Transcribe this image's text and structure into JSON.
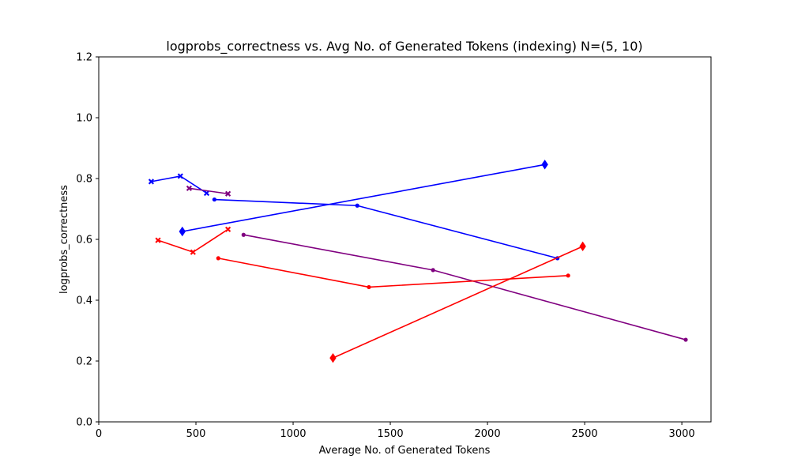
{
  "chart_data": {
    "type": "line",
    "title": "logprobs_correctness vs. Avg No. of Generated Tokens (indexing) N=(5, 10)",
    "xlabel": "Average No. of Generated Tokens",
    "ylabel": "logprobs_correctness",
    "xlim": [
      0,
      3150
    ],
    "ylim": [
      0.0,
      1.2
    ],
    "xticks": [
      0,
      500,
      1000,
      1500,
      2000,
      2500,
      3000
    ],
    "yticks": [
      0.0,
      0.2,
      0.4,
      0.6,
      0.8,
      1.0,
      1.2
    ],
    "grid": false,
    "series": [
      {
        "color": "#0000ff",
        "marker": "x",
        "points": [
          [
            270,
            0.79
          ],
          [
            420,
            0.808
          ],
          [
            555,
            0.752
          ]
        ]
      },
      {
        "color": "#800080",
        "marker": "x",
        "points": [
          [
            465,
            0.768
          ],
          [
            665,
            0.75
          ]
        ]
      },
      {
        "color": "#ff0000",
        "marker": "x",
        "points": [
          [
            305,
            0.597
          ],
          [
            485,
            0.558
          ],
          [
            665,
            0.633
          ]
        ]
      },
      {
        "color": "#0000ff",
        "marker": "dot",
        "points": [
          [
            595,
            0.731
          ],
          [
            1330,
            0.711
          ],
          [
            2360,
            0.538
          ]
        ]
      },
      {
        "color": "#800080",
        "marker": "dot",
        "points": [
          [
            745,
            0.615
          ],
          [
            1720,
            0.499
          ],
          [
            3020,
            0.27
          ]
        ]
      },
      {
        "color": "#ff0000",
        "marker": "dot",
        "points": [
          [
            615,
            0.538
          ],
          [
            1390,
            0.443
          ],
          [
            2415,
            0.481
          ]
        ]
      },
      {
        "color": "#0000ff",
        "marker": "diamond",
        "points": [
          [
            430,
            0.626
          ],
          [
            2295,
            0.846
          ]
        ]
      },
      {
        "color": "#ff0000",
        "marker": "diamond",
        "points": [
          [
            1205,
            0.21
          ],
          [
            2490,
            0.577
          ]
        ]
      }
    ]
  }
}
